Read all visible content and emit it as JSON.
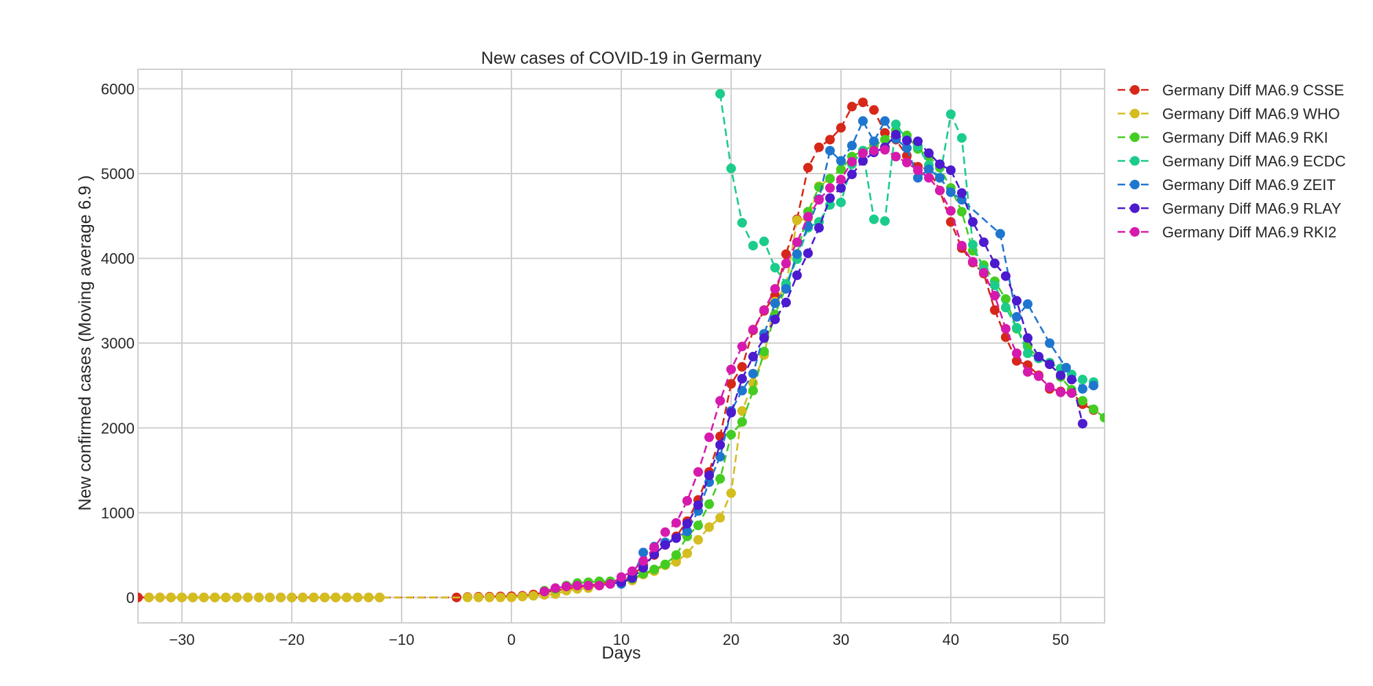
{
  "chart_data": {
    "type": "line",
    "title": "New cases of COVID-19 in Germany",
    "xlabel": "Days",
    "ylabel": "New confirmed cases (Moving average 6.9 )",
    "xlim": [
      -34,
      54
    ],
    "ylim": [
      -300,
      6230
    ],
    "xticks": [
      -30,
      -20,
      -10,
      0,
      10,
      20,
      30,
      40,
      50
    ],
    "xtick_labels": [
      "−30",
      "−20",
      "−10",
      "0",
      "10",
      "20",
      "30",
      "40",
      "50"
    ],
    "yticks": [
      0,
      1000,
      2000,
      3000,
      4000,
      5000,
      6000
    ],
    "ytick_labels": [
      "0",
      "1000",
      "2000",
      "3000",
      "4000",
      "5000",
      "6000"
    ],
    "grid": true,
    "legend_position": "outside-right",
    "line_style": "dashed",
    "marker": "circle",
    "series": [
      {
        "name": "Germany Diff MA6.9 CSSE",
        "color": "#d62718",
        "x": [
          -34,
          -33,
          -32,
          -31,
          -30,
          -29,
          -28,
          -27,
          -26,
          -25,
          -24,
          -23,
          -22,
          -21,
          -20,
          -19,
          -18,
          -17,
          -16,
          -15,
          -14,
          -13,
          -12,
          -5,
          -4,
          -3,
          -2,
          -1,
          0,
          1,
          2,
          3,
          4,
          5,
          6,
          7,
          8,
          9,
          10,
          11,
          12,
          13,
          14,
          15,
          16,
          17,
          18,
          19,
          20,
          21,
          22,
          23,
          24,
          25,
          26,
          27,
          28,
          29,
          30,
          31,
          32,
          33,
          34,
          35,
          36,
          37,
          38,
          39,
          40,
          41,
          42,
          43,
          44,
          45,
          46,
          47,
          48,
          49,
          50,
          51,
          52,
          53
        ],
        "y": [
          0,
          0,
          0,
          0,
          0,
          0,
          0,
          0,
          0,
          0,
          0,
          0,
          0,
          0,
          0,
          0,
          0,
          0,
          0,
          0,
          0,
          0,
          0,
          0,
          5,
          8,
          10,
          12,
          15,
          20,
          35,
          60,
          80,
          100,
          120,
          140,
          160,
          180,
          200,
          250,
          380,
          500,
          620,
          720,
          900,
          1150,
          1480,
          1900,
          2520,
          2720,
          3150,
          3380,
          3560,
          4050,
          4460,
          5070,
          5310,
          5400,
          5540,
          5790,
          5840,
          5750,
          5480,
          5400,
          5210,
          5080,
          5050,
          4800,
          4430,
          4120,
          3950,
          3820,
          3390,
          3070,
          2790,
          2740,
          2620,
          2460,
          2430,
          2420,
          2280,
          2210
        ]
      },
      {
        "name": "Germany Diff MA6.9 WHO",
        "color": "#d4bd1f",
        "x": [
          -33,
          -32,
          -31,
          -30,
          -29,
          -28,
          -27,
          -26,
          -25,
          -24,
          -23,
          -22,
          -21,
          -20,
          -19,
          -18,
          -17,
          -16,
          -15,
          -14,
          -13,
          -12,
          -4,
          -3,
          -2,
          -1,
          0,
          1,
          2,
          3,
          4,
          5,
          6,
          7,
          8,
          9,
          10,
          11,
          12,
          13,
          14,
          15,
          16,
          17,
          18,
          19,
          20,
          21,
          22,
          23,
          24,
          25,
          26,
          27,
          28,
          29
        ],
        "y": [
          0,
          0,
          0,
          0,
          0,
          0,
          0,
          0,
          0,
          0,
          0,
          0,
          0,
          0,
          0,
          0,
          0,
          0,
          0,
          0,
          0,
          0,
          0,
          0,
          0,
          0,
          0,
          10,
          20,
          30,
          40,
          80,
          100,
          110,
          140,
          170,
          190,
          200,
          270,
          310,
          380,
          420,
          520,
          680,
          830,
          940,
          1230,
          2200,
          2530,
          2860,
          3490,
          3680,
          4450,
          4470,
          4850,
          4940
        ]
      },
      {
        "name": "Germany Diff MA6.9 RKI",
        "color": "#44cc22",
        "x": [
          3,
          4,
          5,
          6,
          7,
          8,
          9,
          10,
          11,
          12,
          13,
          14,
          15,
          16,
          17,
          18,
          19,
          20,
          21,
          22,
          23,
          24,
          25,
          26,
          27,
          28,
          29,
          30,
          31,
          32,
          33,
          34,
          35,
          36,
          37,
          38,
          39,
          40,
          41,
          42,
          43,
          44,
          45,
          46,
          47,
          48,
          49,
          50,
          51,
          52,
          53,
          54
        ],
        "y": [
          80,
          100,
          140,
          170,
          180,
          190,
          190,
          200,
          220,
          280,
          330,
          390,
          500,
          720,
          850,
          1100,
          1400,
          1920,
          2070,
          2440,
          2900,
          3340,
          3660,
          4050,
          4550,
          4840,
          4940,
          5050,
          5200,
          5270,
          5330,
          5400,
          5510,
          5450,
          5290,
          5200,
          5070,
          4830,
          4550,
          4090,
          3920,
          3730,
          3520,
          3170,
          2960,
          2820,
          2760,
          2600,
          2450,
          2320,
          2220,
          2120
        ]
      },
      {
        "name": "Germany Diff MA6.9 ECDC",
        "color": "#1bcc8a",
        "x": [
          19,
          20,
          21,
          22,
          23,
          24,
          25,
          26,
          27,
          28,
          29,
          30,
          31,
          32,
          33,
          34,
          35,
          36,
          37,
          38,
          39,
          40,
          41,
          42,
          43,
          44,
          45,
          46,
          47,
          48,
          49,
          50,
          51,
          52,
          53
        ],
        "y": [
          5940,
          5060,
          4420,
          4150,
          4200,
          3890,
          3700,
          3990,
          4360,
          4430,
          4630,
          4660,
          5110,
          5270,
          4460,
          4440,
          5580,
          5400,
          5320,
          5100,
          4950,
          5700,
          5420,
          4160,
          3870,
          3680,
          3420,
          3180,
          2880,
          2820,
          2770,
          2700,
          2630,
          2570,
          2540
        ]
      },
      {
        "name": "Germany Diff MA6.9 ZEIT",
        "color": "#1f76cf",
        "x": [
          10,
          11,
          12,
          13,
          14,
          15,
          16,
          17,
          18,
          19,
          20,
          21,
          22,
          23,
          24,
          25,
          26,
          27,
          28,
          29,
          30,
          31,
          32,
          33,
          34,
          35,
          36,
          37,
          38,
          39,
          40,
          41,
          44.5,
          46,
          47,
          49,
          50.5,
          52,
          53
        ],
        "y": [
          160,
          240,
          530,
          600,
          650,
          700,
          780,
          1020,
          1360,
          1660,
          2200,
          2440,
          2640,
          3110,
          3470,
          3640,
          4050,
          4380,
          4700,
          5270,
          5150,
          5330,
          5620,
          5380,
          5620,
          5410,
          5300,
          4950,
          5050,
          4950,
          4780,
          4690,
          4290,
          3310,
          3460,
          3000,
          2710,
          2460,
          2500
        ]
      },
      {
        "name": "Germany Diff MA6.9 RLAY",
        "color": "#4c1acf",
        "x": [
          9,
          10,
          11,
          12,
          13,
          14,
          15,
          16,
          17,
          18,
          19,
          20,
          21,
          22,
          23,
          24,
          25,
          26,
          27,
          28,
          29,
          30,
          31,
          32,
          33,
          34,
          35,
          36,
          37,
          38,
          39,
          40,
          41,
          42,
          43,
          44,
          45,
          46,
          47,
          48,
          49,
          50,
          51,
          52
        ],
        "y": [
          160,
          180,
          230,
          350,
          510,
          620,
          700,
          870,
          1090,
          1440,
          1800,
          2180,
          2580,
          2840,
          3060,
          3280,
          3480,
          3800,
          4060,
          4360,
          4710,
          4830,
          4990,
          5150,
          5250,
          5310,
          5460,
          5390,
          5380,
          5240,
          5110,
          5040,
          4770,
          4430,
          4190,
          3940,
          3790,
          3500,
          3060,
          2840,
          2750,
          2620,
          2570,
          2050
        ]
      },
      {
        "name": "Germany Diff MA6.9 RKI2",
        "color": "#d61aad",
        "x": [
          3,
          4,
          5,
          6,
          7,
          8,
          9,
          10,
          11,
          12,
          13,
          14,
          15,
          16,
          17,
          18,
          19,
          20,
          21,
          22,
          23,
          24,
          25,
          26,
          27,
          28,
          29,
          30,
          31,
          32,
          33,
          34,
          35,
          36,
          37,
          38,
          39,
          40,
          41,
          42,
          43,
          44,
          45,
          46,
          47,
          48,
          49,
          50,
          51
        ],
        "y": [
          70,
          110,
          130,
          140,
          140,
          140,
          160,
          240,
          310,
          430,
          590,
          770,
          880,
          1140,
          1480,
          1890,
          2320,
          2690,
          2960,
          3160,
          3390,
          3640,
          3940,
          4190,
          4490,
          4690,
          4830,
          4930,
          5140,
          5240,
          5270,
          5280,
          5200,
          5130,
          5040,
          4950,
          4800,
          4560,
          4150,
          3960,
          3830,
          3560,
          3170,
          2880,
          2660,
          2610,
          2480,
          2420,
          2410
        ]
      }
    ]
  }
}
